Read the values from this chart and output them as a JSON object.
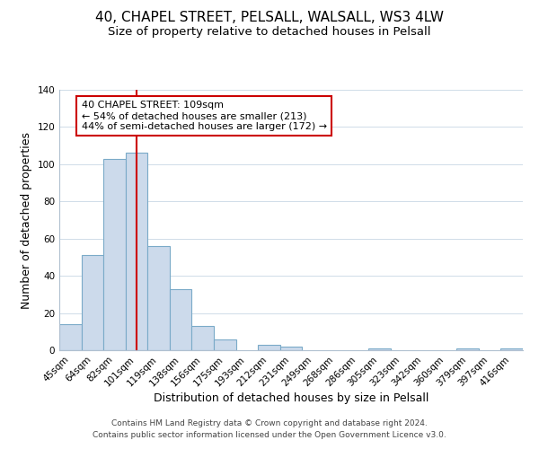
{
  "title": "40, CHAPEL STREET, PELSALL, WALSALL, WS3 4LW",
  "subtitle": "Size of property relative to detached houses in Pelsall",
  "xlabel": "Distribution of detached houses by size in Pelsall",
  "ylabel": "Number of detached properties",
  "bar_labels": [
    "45sqm",
    "64sqm",
    "82sqm",
    "101sqm",
    "119sqm",
    "138sqm",
    "156sqm",
    "175sqm",
    "193sqm",
    "212sqm",
    "231sqm",
    "249sqm",
    "268sqm",
    "286sqm",
    "305sqm",
    "323sqm",
    "342sqm",
    "360sqm",
    "379sqm",
    "397sqm",
    "416sqm"
  ],
  "bar_values": [
    14,
    51,
    103,
    106,
    56,
    33,
    13,
    6,
    0,
    3,
    2,
    0,
    0,
    0,
    1,
    0,
    0,
    0,
    1,
    0,
    1
  ],
  "bar_color": "#ccdaeb",
  "bar_edge_color": "#7aaac8",
  "vline_color": "#cc0000",
  "vline_x_index": 3,
  "ylim": [
    0,
    140
  ],
  "yticks": [
    0,
    20,
    40,
    60,
    80,
    100,
    120,
    140
  ],
  "annotation_box_text": "40 CHAPEL STREET: 109sqm\n← 54% of detached houses are smaller (213)\n44% of semi-detached houses are larger (172) →",
  "footer_line1": "Contains HM Land Registry data © Crown copyright and database right 2024.",
  "footer_line2": "Contains public sector information licensed under the Open Government Licence v3.0.",
  "title_fontsize": 11,
  "subtitle_fontsize": 9.5,
  "axis_label_fontsize": 9,
  "tick_fontsize": 7.5,
  "annotation_fontsize": 8,
  "footer_fontsize": 6.5
}
